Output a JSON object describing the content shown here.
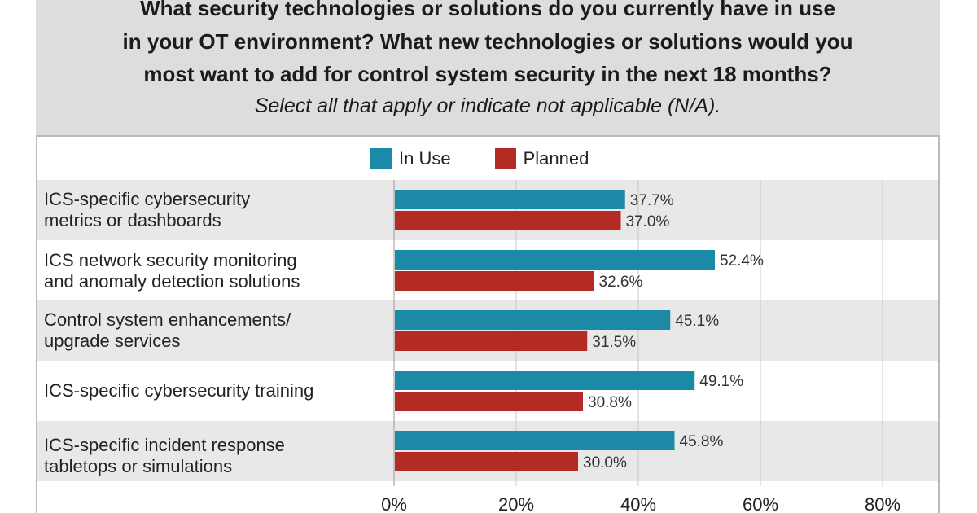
{
  "header": {
    "question_line1": "What security technologies or solutions do you currently have in use",
    "question_line2": "in your OT environment? What new technologies or solutions would you",
    "question_line3": "most want to add for control system security in the next 18 months?",
    "instruction": "Select all that apply or indicate not applicable (N/A)."
  },
  "colors": {
    "in_use": "#1c8aa7",
    "planned": "#b42a25",
    "row_shade": "#e8e8e9",
    "gridline": "#c8c8c8"
  },
  "chart_data": {
    "type": "bar",
    "orientation": "horizontal",
    "title": "What security technologies or solutions do you currently have in use in your OT environment? What new technologies or solutions would you most want to add for control system security in the next 18 months?",
    "subtitle": "Select all that apply or indicate not applicable (N/A).",
    "categories": [
      {
        "line1": "ICS-specific cybersecurity",
        "line2": "metrics or dashboards"
      },
      {
        "line1": "ICS network security monitoring",
        "line2": "and anomaly detection solutions"
      },
      {
        "line1": "Control system enhancements/",
        "line2": "upgrade services"
      },
      {
        "line1": "ICS-specific cybersecurity training",
        "line2": ""
      },
      {
        "line1": "ICS-specific incident response",
        "line2": "tabletops or simulations"
      }
    ],
    "series": [
      {
        "name": "In Use",
        "values": [
          37.7,
          52.4,
          45.1,
          49.1,
          45.8
        ],
        "labels": [
          "37.7%",
          "52.4%",
          "45.1%",
          "49.1%",
          "45.8%"
        ]
      },
      {
        "name": "Planned",
        "values": [
          37.0,
          32.6,
          31.5,
          30.8,
          30.0
        ],
        "labels": [
          "37.0%",
          "32.6%",
          "31.5%",
          "30.8%",
          "30.0%"
        ]
      }
    ],
    "xlim": [
      0,
      80
    ],
    "ticks": [
      0,
      20,
      40,
      60,
      80
    ],
    "tick_labels": [
      "0%",
      "20%",
      "40%",
      "60%",
      "80%"
    ],
    "grid": true,
    "legend_position": "top"
  }
}
